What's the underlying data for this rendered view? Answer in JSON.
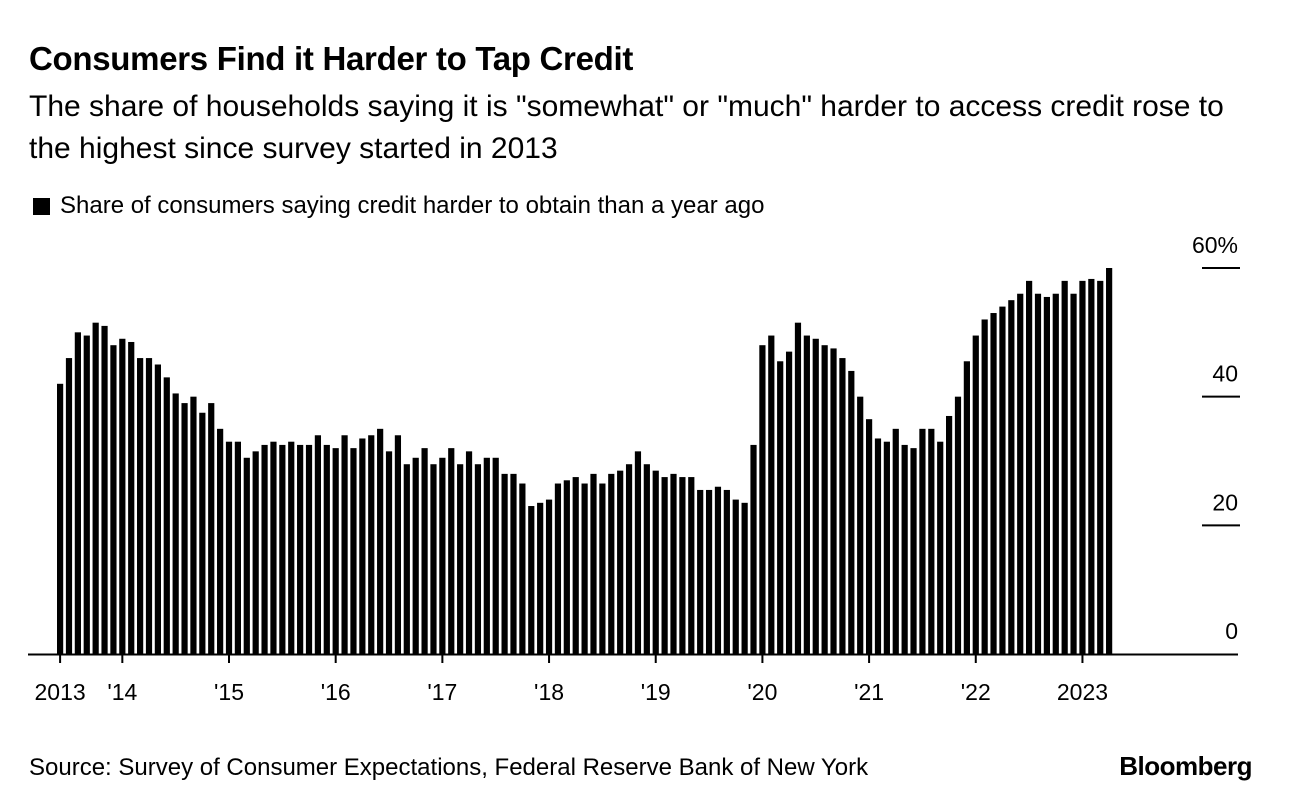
{
  "chart_data": {
    "type": "bar",
    "title": "Consumers Find it Harder to Tap Credit",
    "subtitle": "The share of households saying it is \"somewhat\" or \"much\" harder to access credit rose to the highest since survey started in 2013",
    "legend": [
      {
        "label": "Share of consumers saying credit harder to obtain than a year ago",
        "color": "#000000"
      }
    ],
    "series": [
      {
        "name": "Share of consumers saying credit harder to obtain than a year ago",
        "start": "2013-06",
        "frequency": "monthly",
        "values": [
          42,
          46,
          50,
          49.5,
          51.5,
          51,
          48,
          49,
          48.5,
          46,
          46,
          45,
          43,
          40.5,
          39,
          40,
          37.5,
          39,
          35,
          33,
          33,
          30.5,
          31.5,
          32.5,
          33,
          32.5,
          33,
          32.5,
          32.5,
          34,
          32.5,
          32,
          34,
          32,
          33.5,
          34,
          35,
          31.5,
          34,
          29.5,
          30.5,
          32,
          29.5,
          30.5,
          32,
          29.5,
          31.5,
          29.5,
          30.5,
          30.5,
          28,
          28,
          26.5,
          23,
          23.5,
          24,
          26.5,
          27,
          27.5,
          26.5,
          28,
          26.5,
          28,
          28.5,
          29.5,
          31.5,
          29.5,
          28.5,
          27.5,
          28,
          27.5,
          27.5,
          25.5,
          25.5,
          26,
          25.5,
          24,
          23.5,
          32.5,
          48,
          49.5,
          45.5,
          47,
          51.5,
          49.5,
          49,
          48,
          47.5,
          46,
          44,
          40,
          36.5,
          33.5,
          33,
          35,
          32.5,
          32,
          35,
          35,
          33,
          37,
          40,
          45.5,
          49.5,
          52,
          53,
          54,
          55,
          56,
          58,
          56,
          55.5,
          56,
          58,
          56,
          58,
          58.3,
          58,
          60
        ]
      }
    ],
    "x_ticks": [
      "2013",
      "'14",
      "'15",
      "'16",
      "'17",
      "'18",
      "'19",
      "'20",
      "'21",
      "'22",
      "2023"
    ],
    "y_ticks": [
      "60%",
      "40",
      "20",
      "0"
    ],
    "ylim": [
      0,
      60
    ],
    "xlabel": "",
    "ylabel": ""
  },
  "source": "Source: Survey of Consumer Expectations, Federal Reserve Bank of New York",
  "brand": "Bloomberg"
}
